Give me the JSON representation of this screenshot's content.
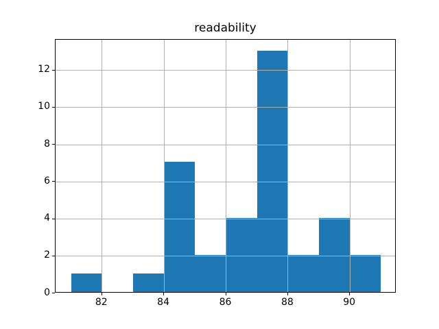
{
  "chart_data": {
    "type": "histogram",
    "title": "readability",
    "xlabel": "",
    "ylabel": "",
    "bin_edges": [
      81,
      82,
      83,
      84,
      85,
      86,
      87,
      88,
      89,
      90,
      91
    ],
    "counts": [
      1,
      0,
      1,
      7,
      2,
      4,
      13,
      2,
      4,
      2
    ],
    "xticks": [
      82,
      84,
      86,
      88,
      90
    ],
    "yticks": [
      0,
      2,
      4,
      6,
      8,
      10,
      12
    ],
    "xlim": [
      80.5,
      91.5
    ],
    "ylim": [
      0,
      13.65
    ],
    "grid": true,
    "legend": "none",
    "bar_color": "#1f77b4",
    "grid_color": "#b0b0b0",
    "spine_color": "#000000",
    "background_color": "#ffffff",
    "text_color": "#000000"
  }
}
